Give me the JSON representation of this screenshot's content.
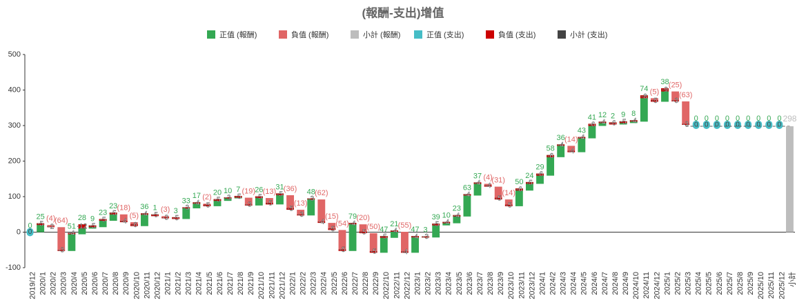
{
  "chart_data": {
    "type": "waterfall",
    "title": "(報酬-支出)增值",
    "legend": [
      {
        "name": "正值 (報酬)",
        "color": "#34a853"
      },
      {
        "name": "負值 (報酬)",
        "color": "#e06666"
      },
      {
        "name": "小計 (報酬)",
        "color": "#bdbdbd"
      },
      {
        "name": "正值 (支出)",
        "color": "#46bdc6"
      },
      {
        "name": "負值 (支出)",
        "color": "#cc0000"
      },
      {
        "name": "小計 (支出)",
        "color": "#434343"
      }
    ],
    "categories": [
      "2019/12",
      "2020/1",
      "2020/2",
      "2020/3",
      "2020/4",
      "2020/5",
      "2020/6",
      "2020/7",
      "2020/8",
      "2020/9",
      "2020/10",
      "2020/11",
      "2020/12",
      "2021/1",
      "2021/2",
      "2021/3",
      "2021/4",
      "2021/5",
      "2021/6",
      "2021/7",
      "2021/8",
      "2021/9",
      "2021/10",
      "2021/11",
      "2021/12",
      "2022/1",
      "2022/2",
      "2022/3",
      "2022/4",
      "2022/5",
      "2022/6",
      "2022/7",
      "2022/8",
      "2022/9",
      "2022/10",
      "2022/11",
      "2022/12",
      "2023/1",
      "2023/2",
      "2023/3",
      "2023/4",
      "2023/5",
      "2023/6",
      "2023/7",
      "2023/8",
      "2023/9",
      "2023/10",
      "2023/11",
      "2023/12",
      "2024/1",
      "2024/2",
      "2024/3",
      "2024/4",
      "2024/5",
      "2024/6",
      "2024/7",
      "2024/8",
      "2024/9",
      "2024/10",
      "2024/11",
      "2024/12",
      "2025/1",
      "2025/2",
      "2025/3",
      "2025/4",
      "2025/5",
      "2025/6",
      "2025/7",
      "2025/8",
      "2025/9",
      "2025/10",
      "2025/11",
      "2025/12",
      "小計"
    ],
    "returns": {
      "values": [
        0,
        25,
        -4,
        -64,
        51,
        28,
        9,
        23,
        23,
        -18,
        -5,
        36,
        1,
        -3,
        3,
        33,
        17,
        -2,
        20,
        10,
        7,
        -19,
        26,
        -13,
        31,
        -36,
        -13,
        48,
        -62,
        -15,
        -54,
        79,
        -20,
        -50,
        47,
        21,
        -55,
        47,
        3,
        39,
        10,
        23,
        63,
        37,
        -4,
        -31,
        -14,
        50,
        24,
        29,
        58,
        36,
        -14,
        43,
        41,
        12,
        2,
        9,
        8,
        74,
        -5,
        38,
        -25,
        -63,
        0,
        0,
        0,
        0,
        0,
        0,
        0,
        0,
        0,
        null
      ],
      "value_labels": [
        "0",
        "25",
        "(4)",
        "(64)",
        "51",
        "28",
        "9",
        "23",
        "23",
        "(18)",
        "(5)",
        "36",
        "1",
        "(3)",
        "3",
        "33",
        "17",
        "(2)",
        "20",
        "10",
        "7",
        "(19)",
        "26",
        "(13)",
        "31",
        "(36)",
        "(13)",
        "48",
        "(62)",
        "(15)",
        "(54)",
        "79",
        "(20)",
        "(50)",
        "47",
        "21",
        "(55)",
        "47",
        "3",
        "39",
        "10",
        "23",
        "63",
        "37",
        "(4)",
        "(31)",
        "(14)",
        "50",
        "24",
        "29",
        "58",
        "36",
        "(14)",
        "43",
        "41",
        "12",
        "2",
        "9",
        "8",
        "74",
        "(5)",
        "38",
        "(25)",
        "(63)",
        "0",
        "0",
        "0",
        "0",
        "0",
        "0",
        "0",
        "0",
        "0",
        null
      ]
    },
    "expenses": {
      "values": [
        0,
        -5,
        -2,
        -3,
        -4,
        -12,
        -5,
        -5,
        -5,
        -4,
        -6,
        -4,
        -5,
        -3,
        -5,
        -3,
        -4,
        -5,
        -5,
        -3,
        -5,
        -3,
        -5,
        -5,
        -5,
        -5,
        -3,
        -3,
        -4,
        -5,
        -5,
        -4,
        -5,
        -5,
        -5,
        -4,
        -4,
        -4,
        -3,
        -5,
        -4,
        -4,
        -4,
        -4,
        -4,
        -5,
        -5,
        -6,
        -5,
        -6,
        -6,
        -4,
        -4,
        -4,
        -6,
        -4,
        -6,
        -5,
        -4,
        -8,
        -5,
        -9,
        -3,
        -3,
        0,
        0,
        0,
        0,
        0,
        0,
        0,
        0,
        0,
        null
      ]
    },
    "subtotal": 298,
    "ylim": [
      -100,
      500
    ],
    "yticks": [
      -100,
      0,
      100,
      200,
      300,
      400,
      500
    ],
    "grid": false
  }
}
